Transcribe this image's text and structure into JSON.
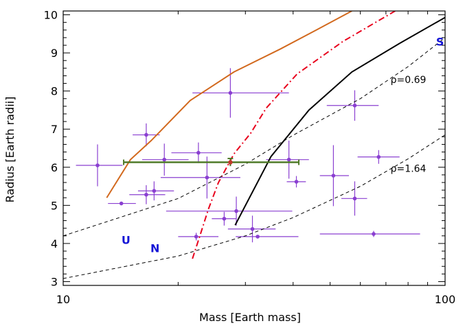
{
  "chart_data": {
    "type": "scatter",
    "title": "",
    "xlabel": "Mass [Earth mass]",
    "ylabel": "Radius [Earth radii]",
    "x_scale": "log",
    "xlim": [
      10,
      100
    ],
    "ylim": [
      2.9,
      10.1
    ],
    "x_ticks": [
      "10",
      "100"
    ],
    "y_ticks": [
      "3",
      "4",
      "5",
      "6",
      "7",
      "8",
      "9",
      "10"
    ],
    "grid": false,
    "colors": {
      "points": "#8a3fd1",
      "orange_curve": "#d2691e",
      "red_curve": "#e8001c",
      "black_curve": "#000000",
      "highlight": "#4f7a28",
      "planet_labels": "#1515d6"
    },
    "points": [
      {
        "x": 12.3,
        "y": 6.05,
        "xerr": [
          1.5,
          2.0
        ],
        "yerr": [
          0.55,
          0.55
        ]
      },
      {
        "x": 14.2,
        "y": 5.05,
        "xerr": [
          1.1,
          1.3
        ],
        "yerr": [
          0.0,
          0.0
        ]
      },
      {
        "x": 16.5,
        "y": 6.85,
        "xerr": [
          1.3,
          1.4
        ],
        "yerr": [
          0.3,
          0.3
        ]
      },
      {
        "x": 16.5,
        "y": 5.28,
        "xerr": [
          1.6,
          2.0
        ],
        "yerr": [
          0.25,
          0.25
        ]
      },
      {
        "x": 17.3,
        "y": 5.38,
        "xerr": [
          1.6,
          2.2
        ],
        "yerr": [
          0.25,
          0.25
        ]
      },
      {
        "x": 18.4,
        "y": 6.2,
        "xerr": [
          2.3,
          2.9
        ],
        "yerr": [
          0.42,
          0.42
        ]
      },
      {
        "x": 22.6,
        "y": 6.38,
        "xerr": [
          3.4,
          3.4
        ],
        "yerr": [
          0.27,
          0.27
        ]
      },
      {
        "x": 22.3,
        "y": 4.18,
        "xerr": [
          2.3,
          3.2
        ],
        "yerr": [
          0.1,
          0.1
        ]
      },
      {
        "x": 23.8,
        "y": 5.73,
        "xerr": [
          5.8,
          5.3
        ],
        "yerr": [
          0.55,
          0.55
        ]
      },
      {
        "x": 27.4,
        "y": 7.95,
        "xerr": [
          5.6,
          11.6
        ],
        "yerr": [
          0.65,
          0.65
        ]
      },
      {
        "x": 26.4,
        "y": 4.65,
        "xerr": [
          1.9,
          2.0
        ],
        "yerr": [
          0.18,
          0.18
        ]
      },
      {
        "x": 28.4,
        "y": 4.85,
        "xerr": [
          9.8,
          11.4
        ],
        "yerr": [
          0.38,
          0.38
        ]
      },
      {
        "x": 31.3,
        "y": 4.38,
        "xerr": [
          4.3,
          4.7
        ],
        "yerr": [
          0.35,
          0.35
        ]
      },
      {
        "x": 32.3,
        "y": 4.18,
        "xerr": [
          4.0,
          9.0
        ],
        "yerr": [
          0.0,
          0.0
        ]
      },
      {
        "x": 39.0,
        "y": 6.2,
        "xerr": [
          5.0,
          5.0
        ],
        "yerr": [
          0.5,
          0.5
        ]
      },
      {
        "x": 40.8,
        "y": 5.62,
        "xerr": [
          2.3,
          2.4
        ],
        "yerr": [
          0.15,
          0.15
        ]
      },
      {
        "x": 51.0,
        "y": 5.78,
        "xerr": [
          4.0,
          5.0
        ],
        "yerr": [
          0.8,
          0.8
        ]
      },
      {
        "x": 58.0,
        "y": 7.62,
        "xerr": [
          9.0,
          9.0
        ],
        "yerr": [
          0.4,
          0.4
        ]
      },
      {
        "x": 58.0,
        "y": 5.18,
        "xerr": [
          4.5,
          4.5
        ],
        "yerr": [
          0.45,
          0.45
        ]
      },
      {
        "x": 67.0,
        "y": 6.27,
        "xerr": [
          8.0,
          9.0
        ],
        "yerr": [
          0.18,
          0.18
        ]
      },
      {
        "x": 65.0,
        "y": 4.25,
        "xerr": [
          18.0,
          21.0
        ],
        "yerr": [
          0.08,
          0.08
        ]
      }
    ],
    "highlight_point": {
      "x": 27.4,
      "y": 6.13,
      "xerr": [
        13.0,
        14.0
      ],
      "yerr": [
        0.1,
        0.1
      ],
      "color": "#4f7a28",
      "marker_color": "#c0392b"
    },
    "lines": [
      {
        "style": "solid",
        "color": "#d2691e",
        "x": [
          13.0,
          15.0,
          17.0,
          21.5,
          28.0,
          37.0,
          46.0,
          57.0
        ],
        "y": [
          5.2,
          6.2,
          6.7,
          7.75,
          8.5,
          9.1,
          9.6,
          10.1
        ]
      },
      {
        "style": "dashdot",
        "color": "#e8001c",
        "x": [
          21.8,
          22.8,
          24.0,
          25.5,
          28.0,
          31.0,
          34.0,
          41.0,
          54.0,
          74.0
        ],
        "y": [
          3.6,
          4.2,
          4.9,
          5.6,
          6.35,
          6.9,
          7.55,
          8.45,
          9.3,
          10.1
        ]
      },
      {
        "style": "solid",
        "color": "#000000",
        "x": [
          28.2,
          35.0,
          44.0,
          57.0,
          76.0,
          100.0
        ],
        "y": [
          4.48,
          6.28,
          7.5,
          8.5,
          9.25,
          9.93
        ]
      },
      {
        "style": "dashed",
        "color": "#000000",
        "x": [
          10.0,
          20.0,
          30.0,
          40.0,
          60.0,
          80.0,
          100.0
        ],
        "y": [
          4.2,
          5.18,
          6.08,
          6.84,
          7.8,
          8.64,
          9.4
        ]
      },
      {
        "style": "dashed",
        "color": "#000000",
        "x": [
          10.0,
          20.0,
          30.0,
          40.0,
          60.0,
          80.0,
          100.0
        ],
        "y": [
          3.08,
          3.67,
          4.2,
          4.68,
          5.5,
          6.22,
          6.85
        ]
      }
    ],
    "annotations": [
      {
        "text": "ρ=0.69",
        "x": 72.0,
        "y": 8.3
      },
      {
        "text": "ρ=1.64",
        "x": 72.0,
        "y": 5.97
      }
    ],
    "planet_labels": [
      {
        "text": "U",
        "x": 14.6,
        "y": 4.1
      },
      {
        "text": "N",
        "x": 17.4,
        "y": 3.88
      },
      {
        "text": "S",
        "x": 97.0,
        "y": 9.3
      }
    ]
  }
}
